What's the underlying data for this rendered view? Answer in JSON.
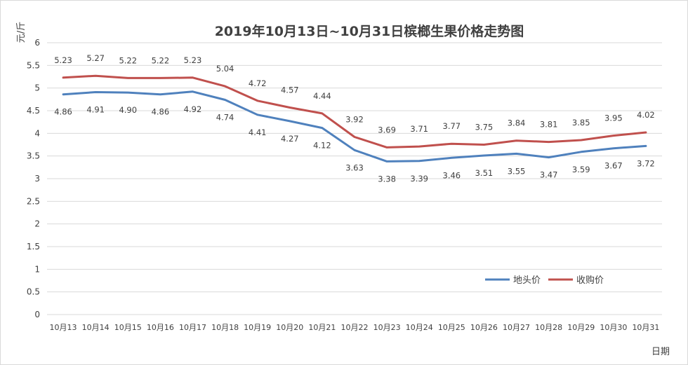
{
  "chart_data": {
    "type": "line",
    "title": "2019年10月13日~10月31日槟榔生果价格走势图",
    "ylabel": "元/斤",
    "xlabel": "日期",
    "ylim": [
      0,
      6
    ],
    "yticks": [
      "0",
      "0.5",
      "1",
      "1.5",
      "2",
      "2.5",
      "3",
      "3.5",
      "4",
      "4.5",
      "5",
      "5.5",
      "6"
    ],
    "grid": true,
    "legend_position": "bottom-right",
    "categories": [
      "10月13",
      "10月14",
      "10月15",
      "10月16",
      "10月17",
      "10月18",
      "10月19",
      "10月20",
      "10月21",
      "10月22",
      "10月23",
      "10月24",
      "10月25",
      "10月26",
      "10月27",
      "10月28",
      "10月29",
      "10月30",
      "10月31"
    ],
    "series": [
      {
        "name": "地头价",
        "color": "#4f81bd",
        "values": [
          4.86,
          4.91,
          4.9,
          4.86,
          4.92,
          4.74,
          4.41,
          4.27,
          4.12,
          3.63,
          3.38,
          3.39,
          3.46,
          3.51,
          3.55,
          3.47,
          3.59,
          3.67,
          3.72
        ],
        "labels": [
          "4.86",
          "4.91",
          "4.90",
          "4.86",
          "4.92",
          "4.74",
          "4.41",
          "4.27",
          "4.12",
          "3.63",
          "3.38",
          "3.39",
          "3.46",
          "3.51",
          "3.55",
          "3.47",
          "3.59",
          "3.67",
          "3.72"
        ]
      },
      {
        "name": "收购价",
        "color": "#c0504d",
        "values": [
          5.23,
          5.27,
          5.22,
          5.22,
          5.23,
          5.04,
          4.72,
          4.57,
          4.44,
          3.92,
          3.69,
          3.71,
          3.77,
          3.75,
          3.84,
          3.81,
          3.85,
          3.95,
          4.02
        ],
        "labels": [
          "5.23",
          "5.27",
          "5.22",
          "5.22",
          "5.23",
          "5.04",
          "4.72",
          "4.57",
          "4.44",
          "3.92",
          "3.69",
          "3.71",
          "3.77",
          "3.75",
          "3.84",
          "3.81",
          "3.85",
          "3.95",
          "4.02"
        ]
      }
    ]
  }
}
